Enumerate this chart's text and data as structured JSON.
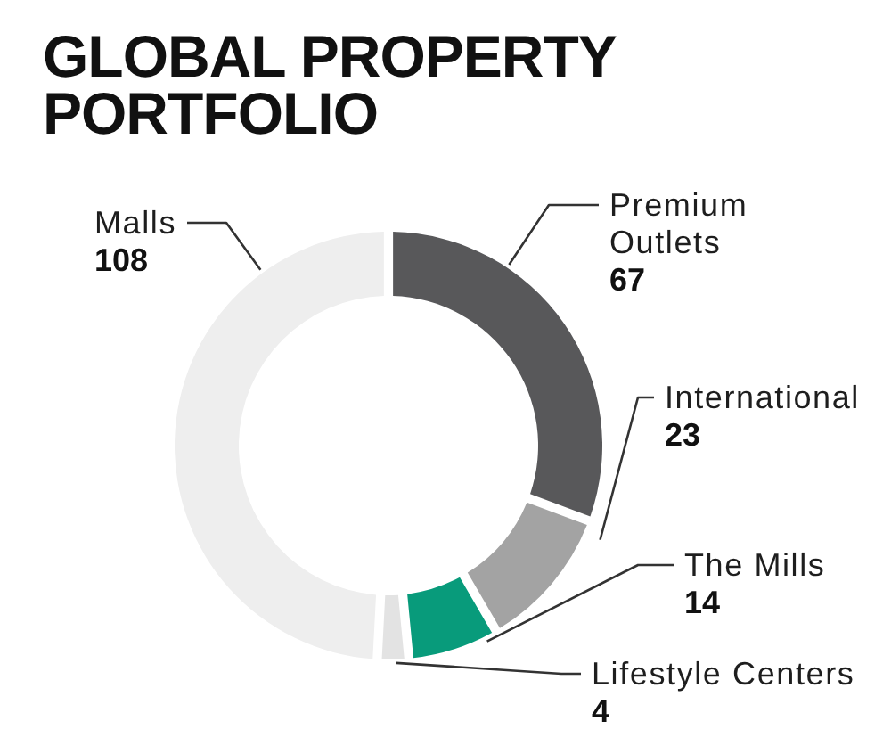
{
  "chart_data": {
    "type": "donut",
    "title": "GLOBAL PROPERTY PORTFOLIO",
    "categories": [
      "Premium Outlets",
      "International",
      "The Mills",
      "Lifestyle Centers",
      "Malls"
    ],
    "values": [
      67,
      23,
      14,
      4,
      108
    ],
    "colors": [
      "#58585a",
      "#a3a3a3",
      "#089b7b",
      "#e3e3e3",
      "#eeeeee"
    ],
    "data_labels": true
  }
}
